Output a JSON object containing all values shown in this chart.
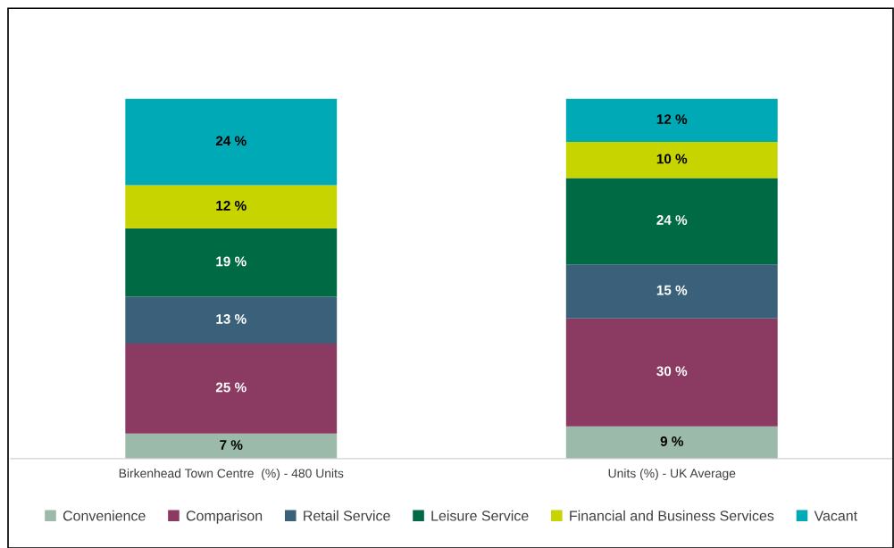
{
  "chart_data": {
    "type": "bar",
    "stacked": true,
    "tick_labels": "x",
    "legend": "bottom",
    "grid": false,
    "categories": [
      "Birkenhead Town Centre  (%) - 480 Units",
      "Units (%) - UK Average"
    ],
    "series": [
      {
        "name": "Convenience",
        "color": "#9bbaa9",
        "values": [
          7,
          9
        ],
        "value_labels": [
          "7 %",
          "9 %"
        ]
      },
      {
        "name": "Comparison",
        "color": "#8b3a62",
        "values": [
          25,
          30
        ],
        "value_labels": [
          "25 %",
          "30 %"
        ]
      },
      {
        "name": "Retail Service",
        "color": "#3b6079",
        "values": [
          13,
          15
        ],
        "value_labels": [
          "13 %",
          "15 %"
        ]
      },
      {
        "name": "Leisure Service",
        "color": "#006a45",
        "values": [
          19,
          24
        ],
        "value_labels": [
          "19 %",
          "24 %"
        ]
      },
      {
        "name": "Financial and Business Services",
        "color": "#c8d400",
        "values": [
          12,
          10
        ],
        "value_labels": [
          "12 %",
          "10 %"
        ]
      },
      {
        "name": "Vacant",
        "color": "#00a9b6",
        "values": [
          24,
          12
        ],
        "value_labels": [
          "24 %",
          "12 %"
        ]
      }
    ]
  }
}
